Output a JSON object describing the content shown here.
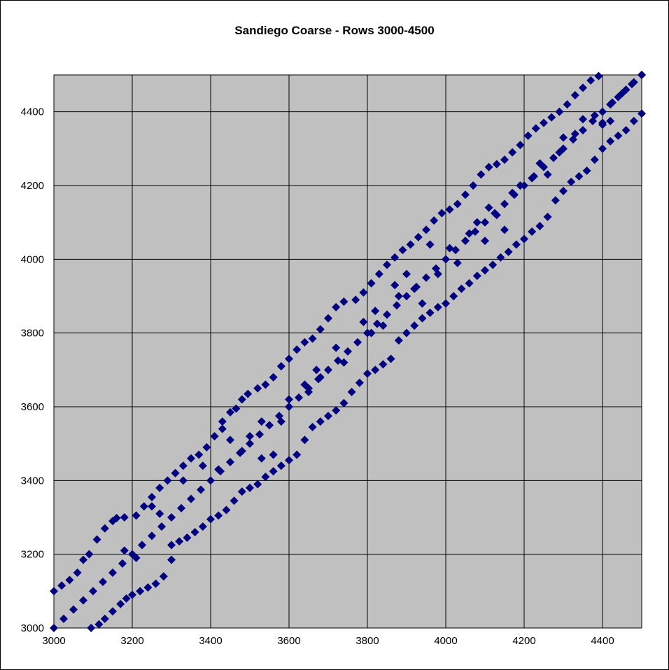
{
  "chart_data": {
    "type": "scatter",
    "title": "Sandiego Coarse - Rows 3000-4500",
    "xlabel": "",
    "ylabel": "",
    "xlim": [
      3000,
      4500
    ],
    "ylim": [
      3000,
      4500
    ],
    "xticks": [
      3000,
      3200,
      3400,
      3600,
      3800,
      4000,
      4200,
      4400
    ],
    "yticks": [
      3000,
      3200,
      3400,
      3600,
      3800,
      4000,
      4200,
      4400
    ],
    "grid": true,
    "legend": "none",
    "marker": "diamond",
    "colors": {
      "marker": "#000080",
      "plot_background": "#c0c0c0",
      "grid": "#000000"
    },
    "series": [
      {
        "points": [
          [
            3000,
            3000
          ],
          [
            3025,
            3025
          ],
          [
            3050,
            3050
          ],
          [
            3075,
            3075
          ],
          [
            3100,
            3100
          ],
          [
            3125,
            3125
          ],
          [
            3150,
            3150
          ],
          [
            3175,
            3175
          ],
          [
            3200,
            3200
          ],
          [
            3225,
            3225
          ],
          [
            3250,
            3250
          ],
          [
            3275,
            3275
          ],
          [
            3300,
            3300
          ],
          [
            3325,
            3325
          ],
          [
            3350,
            3350
          ],
          [
            3375,
            3375
          ],
          [
            3400,
            3400
          ],
          [
            3425,
            3425
          ],
          [
            3450,
            3450
          ],
          [
            3475,
            3475
          ],
          [
            3500,
            3500
          ],
          [
            3525,
            3525
          ],
          [
            3550,
            3550
          ],
          [
            3575,
            3575
          ],
          [
            3600,
            3600
          ],
          [
            3625,
            3625
          ],
          [
            3650,
            3650
          ],
          [
            3675,
            3675
          ],
          [
            3700,
            3700
          ],
          [
            3725,
            3725
          ],
          [
            3750,
            3750
          ],
          [
            3775,
            3775
          ],
          [
            3800,
            3800
          ],
          [
            3825,
            3825
          ],
          [
            3850,
            3850
          ],
          [
            3875,
            3875
          ],
          [
            3900,
            3900
          ],
          [
            3925,
            3925
          ],
          [
            3950,
            3950
          ],
          [
            3975,
            3975
          ],
          [
            4000,
            4000
          ],
          [
            4025,
            4025
          ],
          [
            4050,
            4050
          ],
          [
            4075,
            4075
          ],
          [
            4100,
            4100
          ],
          [
            4125,
            4125
          ],
          [
            4150,
            4150
          ],
          [
            4175,
            4175
          ],
          [
            4200,
            4200
          ],
          [
            4225,
            4225
          ],
          [
            4250,
            4250
          ],
          [
            4275,
            4275
          ],
          [
            4300,
            4300
          ],
          [
            4325,
            4325
          ],
          [
            4350,
            4350
          ],
          [
            4375,
            4375
          ],
          [
            4400,
            4400
          ],
          [
            4425,
            4425
          ],
          [
            4450,
            4450
          ],
          [
            4475,
            4475
          ],
          [
            4500,
            4500
          ],
          [
            3000,
            3100
          ],
          [
            3020,
            3115
          ],
          [
            3040,
            3130
          ],
          [
            3060,
            3150
          ],
          [
            3075,
            3185
          ],
          [
            3090,
            3200
          ],
          [
            3110,
            3240
          ],
          [
            3130,
            3270
          ],
          [
            3150,
            3290
          ],
          [
            3160,
            3298
          ],
          [
            3180,
            3300
          ],
          [
            3210,
            3305
          ],
          [
            3230,
            3330
          ],
          [
            3250,
            3355
          ],
          [
            3270,
            3380
          ],
          [
            3290,
            3400
          ],
          [
            3310,
            3420
          ],
          [
            3330,
            3440
          ],
          [
            3350,
            3460
          ],
          [
            3370,
            3470
          ],
          [
            3390,
            3490
          ],
          [
            3410,
            3520
          ],
          [
            3430,
            3560
          ],
          [
            3450,
            3585
          ],
          [
            3465,
            3595
          ],
          [
            3480,
            3620
          ],
          [
            3495,
            3635
          ],
          [
            3520,
            3650
          ],
          [
            3540,
            3660
          ],
          [
            3560,
            3680
          ],
          [
            3580,
            3710
          ],
          [
            3600,
            3730
          ],
          [
            3620,
            3755
          ],
          [
            3640,
            3775
          ],
          [
            3660,
            3785
          ],
          [
            3680,
            3810
          ],
          [
            3700,
            3840
          ],
          [
            3720,
            3870
          ],
          [
            3740,
            3885
          ],
          [
            3770,
            3890
          ],
          [
            3790,
            3910
          ],
          [
            3810,
            3935
          ],
          [
            3830,
            3960
          ],
          [
            3850,
            3985
          ],
          [
            3870,
            4005
          ],
          [
            3890,
            4025
          ],
          [
            3910,
            4040
          ],
          [
            3930,
            4060
          ],
          [
            3950,
            4080
          ],
          [
            3970,
            4105
          ],
          [
            3990,
            4125
          ],
          [
            4010,
            4135
          ],
          [
            4030,
            4150
          ],
          [
            4050,
            4175
          ],
          [
            4070,
            4200
          ],
          [
            4090,
            4230
          ],
          [
            4110,
            4250
          ],
          [
            4130,
            4258
          ],
          [
            4150,
            4270
          ],
          [
            4170,
            4290
          ],
          [
            4190,
            4310
          ],
          [
            4210,
            4335
          ],
          [
            4230,
            4355
          ],
          [
            4250,
            4370
          ],
          [
            4270,
            4385
          ],
          [
            4290,
            4400
          ],
          [
            4310,
            4420
          ],
          [
            4330,
            4445
          ],
          [
            4350,
            4465
          ],
          [
            4370,
            4485
          ],
          [
            4390,
            4497
          ],
          [
            4400,
            4365
          ],
          [
            4420,
            4375
          ],
          [
            4440,
            4440
          ],
          [
            4460,
            4460
          ],
          [
            4480,
            4480
          ],
          [
            4500,
            4500
          ],
          [
            3095,
            3000
          ],
          [
            3115,
            3010
          ],
          [
            3130,
            3025
          ],
          [
            3150,
            3045
          ],
          [
            3170,
            3065
          ],
          [
            3185,
            3080
          ],
          [
            3200,
            3090
          ],
          [
            3220,
            3100
          ],
          [
            3240,
            3110
          ],
          [
            3260,
            3120
          ],
          [
            3280,
            3140
          ],
          [
            3300,
            3185
          ],
          [
            3300,
            3225
          ],
          [
            3320,
            3235
          ],
          [
            3340,
            3245
          ],
          [
            3360,
            3260
          ],
          [
            3380,
            3275
          ],
          [
            3400,
            3295
          ],
          [
            3420,
            3305
          ],
          [
            3440,
            3320
          ],
          [
            3460,
            3345
          ],
          [
            3480,
            3370
          ],
          [
            3500,
            3380
          ],
          [
            3520,
            3390
          ],
          [
            3540,
            3410
          ],
          [
            3560,
            3425
          ],
          [
            3580,
            3440
          ],
          [
            3600,
            3455
          ],
          [
            3620,
            3470
          ],
          [
            3640,
            3510
          ],
          [
            3660,
            3545
          ],
          [
            3680,
            3560
          ],
          [
            3700,
            3575
          ],
          [
            3720,
            3590
          ],
          [
            3740,
            3610
          ],
          [
            3760,
            3640
          ],
          [
            3780,
            3665
          ],
          [
            3800,
            3690
          ],
          [
            3820,
            3700
          ],
          [
            3840,
            3715
          ],
          [
            3860,
            3730
          ],
          [
            3880,
            3780
          ],
          [
            3900,
            3800
          ],
          [
            3920,
            3820
          ],
          [
            3940,
            3840
          ],
          [
            3960,
            3855
          ],
          [
            3980,
            3870
          ],
          [
            4000,
            3880
          ],
          [
            4020,
            3900
          ],
          [
            4040,
            3920
          ],
          [
            4060,
            3935
          ],
          [
            4080,
            3955
          ],
          [
            4100,
            3970
          ],
          [
            4120,
            3985
          ],
          [
            4140,
            4005
          ],
          [
            4160,
            4020
          ],
          [
            4180,
            4040
          ],
          [
            4200,
            4055
          ],
          [
            4220,
            4075
          ],
          [
            4240,
            4090
          ],
          [
            4260,
            4115
          ],
          [
            4280,
            4160
          ],
          [
            4300,
            4185
          ],
          [
            4320,
            4210
          ],
          [
            4340,
            4225
          ],
          [
            4360,
            4240
          ],
          [
            4380,
            4270
          ],
          [
            4400,
            4300
          ],
          [
            4420,
            4320
          ],
          [
            4440,
            4335
          ],
          [
            4460,
            4350
          ],
          [
            4480,
            4375
          ],
          [
            4500,
            4395
          ],
          [
            3180,
            3210
          ],
          [
            3210,
            3190
          ],
          [
            3250,
            3330
          ],
          [
            3270,
            3310
          ],
          [
            3310,
            3420
          ],
          [
            3330,
            3400
          ],
          [
            3380,
            3440
          ],
          [
            3420,
            3430
          ],
          [
            3430,
            3540
          ],
          [
            3450,
            3510
          ],
          [
            3480,
            3480
          ],
          [
            3500,
            3520
          ],
          [
            3530,
            3460
          ],
          [
            3530,
            3560
          ],
          [
            3560,
            3470
          ],
          [
            3580,
            3560
          ],
          [
            3600,
            3620
          ],
          [
            3640,
            3660
          ],
          [
            3650,
            3640
          ],
          [
            3670,
            3700
          ],
          [
            3680,
            3680
          ],
          [
            3720,
            3760
          ],
          [
            3740,
            3720
          ],
          [
            3790,
            3830
          ],
          [
            3810,
            3800
          ],
          [
            3820,
            3860
          ],
          [
            3840,
            3820
          ],
          [
            3870,
            3930
          ],
          [
            3880,
            3900
          ],
          [
            3900,
            3960
          ],
          [
            3920,
            3920
          ],
          [
            3940,
            3880
          ],
          [
            3960,
            4040
          ],
          [
            3980,
            3960
          ],
          [
            4010,
            4030
          ],
          [
            4030,
            3990
          ],
          [
            4060,
            4070
          ],
          [
            4080,
            4100
          ],
          [
            4100,
            4050
          ],
          [
            4110,
            4140
          ],
          [
            4130,
            4120
          ],
          [
            4150,
            4080
          ],
          [
            4170,
            4180
          ],
          [
            4190,
            4200
          ],
          [
            4220,
            4220
          ],
          [
            4240,
            4260
          ],
          [
            4260,
            4230
          ],
          [
            4290,
            4290
          ],
          [
            4300,
            4330
          ],
          [
            4330,
            4340
          ],
          [
            4350,
            4380
          ],
          [
            4380,
            4390
          ],
          [
            4400,
            4370
          ],
          [
            4420,
            4420
          ]
        ]
      }
    ]
  }
}
